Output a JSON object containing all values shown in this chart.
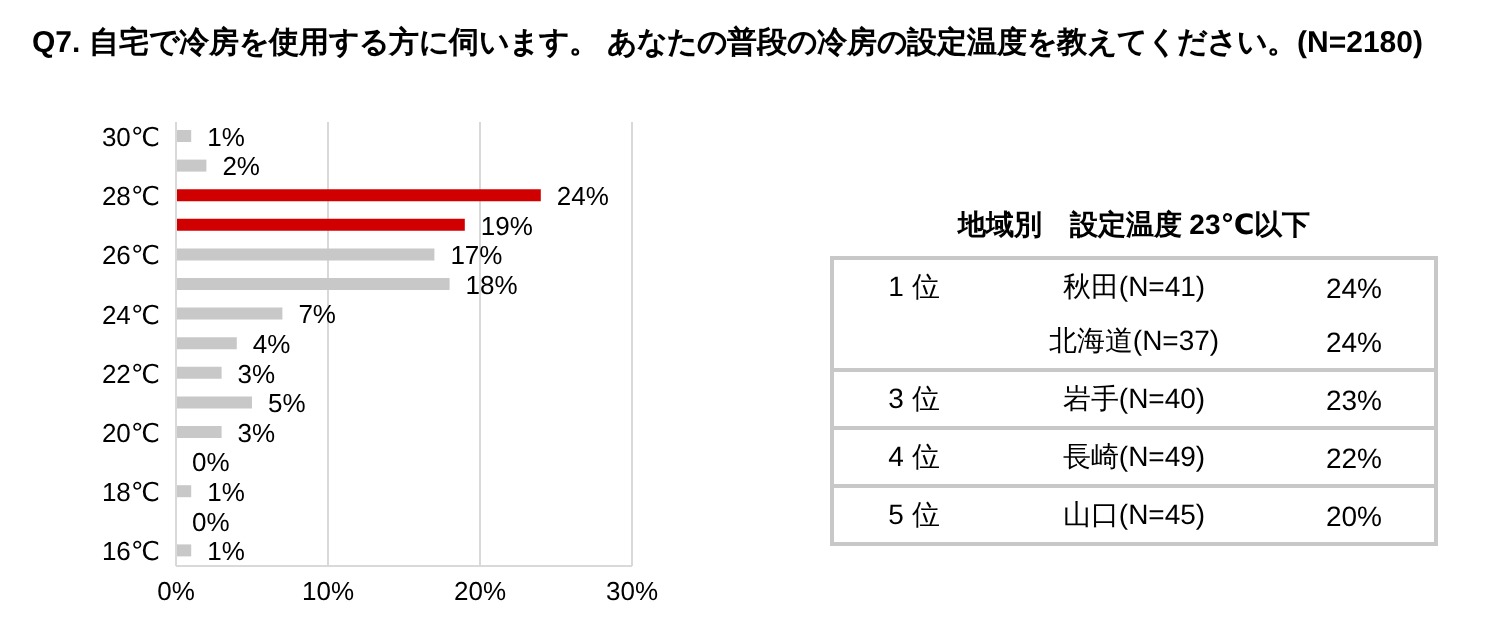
{
  "chart_data": [
    {
      "type": "bar",
      "orientation": "horizontal",
      "title": "Q7.  自宅で冷房を使用する方に伺います。 あなたの普段の冷房の設定温度を教えてください。(N=2180)",
      "categories": [
        "30℃",
        null,
        "28℃",
        null,
        "26℃",
        null,
        "24℃",
        null,
        "22℃",
        null,
        "20℃",
        null,
        "18℃",
        null,
        "16℃"
      ],
      "values": [
        1,
        2,
        24,
        19,
        17,
        18,
        7,
        4,
        3,
        5,
        3,
        0,
        1,
        0,
        1
      ],
      "value_labels": [
        "1%",
        "2%",
        "24%",
        "19%",
        "17%",
        "18%",
        "7%",
        "4%",
        "3%",
        "5%",
        "3%",
        "0%",
        "1%",
        "0%",
        "1%"
      ],
      "colors": [
        "#c8c8c8",
        "#c8c8c8",
        "#d00000",
        "#d00000",
        "#c8c8c8",
        "#c8c8c8",
        "#c8c8c8",
        "#c8c8c8",
        "#c8c8c8",
        "#c8c8c8",
        "#c8c8c8",
        "#c8c8c8",
        "#c8c8c8",
        "#c8c8c8",
        "#c8c8c8"
      ],
      "xlim": [
        0,
        30
      ],
      "xticks": [
        {
          "value": 0,
          "label": "0%"
        },
        {
          "value": 10,
          "label": "10%"
        },
        {
          "value": 20,
          "label": "20%"
        },
        {
          "value": 30,
          "label": "30%"
        }
      ],
      "grid": "x"
    },
    {
      "type": "other",
      "title": "地域別　設定温度 23℃以下",
      "y_categories": [
        "1 位",
        null,
        "3 位",
        "4 位",
        "5 位"
      ],
      "categories": [
        "秋田(N=41)",
        "北海道(N=37)",
        "岩手(N=40)",
        "長崎(N=49)",
        "山口(N=45)"
      ],
      "value_labels": [
        "24%",
        "24%",
        "23%",
        "22%",
        "20%"
      ]
    }
  ]
}
